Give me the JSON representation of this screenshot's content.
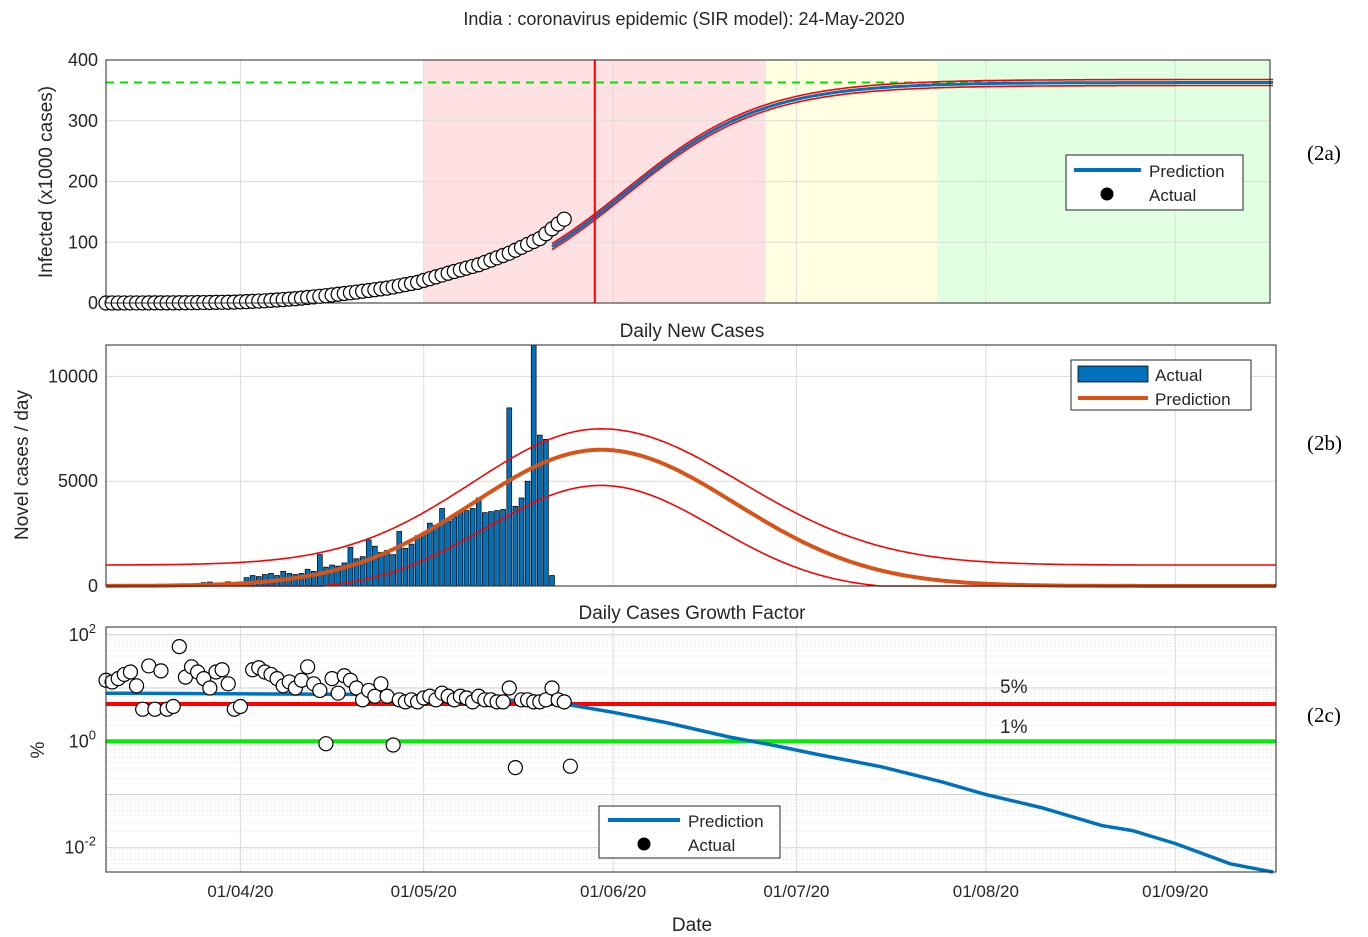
{
  "title": "India : coronavirus epidemic (SIR model): 24-May-2020",
  "xlabel": "Date",
  "date_ticks": [
    "01/04/20",
    "01/05/20",
    "01/06/20",
    "01/07/20",
    "01/08/20",
    "01/09/20"
  ],
  "colors": {
    "prediction": "#0072bd",
    "bounds": "#ff0000",
    "bar": "#0072bd",
    "orange": "#d95319",
    "zone_red": "#ffe1e3",
    "zone_yellow": "#ffffe1",
    "zone_green": "#e1ffe1",
    "asymptote": "#00e000",
    "line_5pct": "#ff0000",
    "line_1pct": "#00ee00"
  },
  "chart_data": [
    {
      "id": "2a",
      "type": "line",
      "panel_label": "(2a)",
      "title": "",
      "ylabel": "Infected (x1000 cases)",
      "xlim": [
        "2020-03-10",
        "2020-09-17"
      ],
      "ylim": [
        0,
        400
      ],
      "yticks": [
        "0",
        "100",
        "200",
        "300",
        "400"
      ],
      "grid": true,
      "legend_position": "right",
      "legend": {
        "prediction": "Prediction",
        "actual": "Actual"
      },
      "logistic": {
        "capacity": 363,
        "midpoint": "2020-06-03",
        "rate_per_day": 0.0889
      },
      "asymptote": 363,
      "current_date": "2020-05-29",
      "zones": [
        {
          "from": "2020-05-01",
          "to": "2020-06-26",
          "color": "red"
        },
        {
          "from": "2020-06-26",
          "to": "2020-07-24",
          "color": "yellow"
        },
        {
          "from": "2020-07-24",
          "to": "2020-09-17",
          "color": "green"
        }
      ],
      "actual": {
        "start": "2020-03-10",
        "end": "2020-05-24",
        "anchors": [
          [
            "2020-03-10",
            0.05
          ],
          [
            "2020-03-20",
            0.2
          ],
          [
            "2020-03-25",
            0.6
          ],
          [
            "2020-03-31",
            1.4
          ],
          [
            "2020-04-05",
            3.6
          ],
          [
            "2020-04-10",
            7.0
          ],
          [
            "2020-04-15",
            12.0
          ],
          [
            "2020-04-20",
            18.0
          ],
          [
            "2020-04-25",
            24.5
          ],
          [
            "2020-04-30",
            34.0
          ],
          [
            "2020-05-05",
            49.0
          ],
          [
            "2020-05-10",
            63.0
          ],
          [
            "2020-05-15",
            82.0
          ],
          [
            "2020-05-20",
            106.0
          ],
          [
            "2020-05-24",
            138.0
          ]
        ]
      }
    },
    {
      "id": "2b",
      "type": "bar",
      "panel_label": "(2b)",
      "title": "Daily New Cases",
      "ylabel": "Novel cases / day",
      "ylim": [
        0,
        11500
      ],
      "yticks": [
        "0",
        "5000",
        "10000"
      ],
      "grid": true,
      "legend_position": "top-right",
      "legend": {
        "actual": "Actual",
        "prediction": "Prediction"
      },
      "bars": {
        "start": "2020-03-23",
        "values": [
          50,
          50,
          100,
          160,
          190,
          60,
          110,
          200,
          170,
          120,
          400,
          500,
          450,
          550,
          600,
          500,
          700,
          600,
          550,
          600,
          800,
          700,
          1500,
          900,
          1000,
          950,
          1100,
          1850,
          1300,
          1400,
          2200,
          1900,
          1600,
          1700,
          1500,
          2600,
          1800,
          2000,
          2400,
          2500,
          3000,
          2900,
          3700,
          3100,
          3300,
          3500,
          3600,
          3700,
          4200,
          3500,
          3550,
          3600,
          3650,
          8500,
          3800,
          4200,
          5000,
          11500,
          7200,
          7000,
          500
        ]
      },
      "prediction_peak": 6500,
      "upper_peak": 7500,
      "lower_peak": 5400,
      "peak_date": "2020-05-30"
    },
    {
      "id": "2c",
      "type": "scatter",
      "panel_label": "(2c)",
      "title": "Daily Cases Growth Factor",
      "ylabel": "%",
      "yscale": "log",
      "ylim": [
        0.0035,
        140
      ],
      "yticks": [
        "10^-2",
        "10^0",
        "10^2"
      ],
      "grid": true,
      "legend_position": "bottom-center",
      "legend": {
        "prediction": "Prediction",
        "actual": "Actual"
      },
      "reference_lines": [
        {
          "label": "5%",
          "value": 5
        },
        {
          "label": "1%",
          "value": 1
        }
      ],
      "prediction": [
        [
          "2020-03-10",
          8.0
        ],
        [
          "2020-04-20",
          7.6
        ],
        [
          "2020-05-22",
          5.5
        ],
        [
          "2020-05-25",
          4.8
        ],
        [
          "2020-06-01",
          3.5
        ],
        [
          "2020-06-10",
          2.2
        ],
        [
          "2020-06-20",
          1.2
        ],
        [
          "2020-06-27",
          0.85
        ],
        [
          "2020-07-05",
          0.55
        ],
        [
          "2020-07-15",
          0.33
        ],
        [
          "2020-07-25",
          0.17
        ],
        [
          "2020-08-01",
          0.1
        ],
        [
          "2020-08-10",
          0.057
        ],
        [
          "2020-08-20",
          0.026
        ],
        [
          "2020-08-25",
          0.021
        ],
        [
          "2020-09-01",
          0.012
        ],
        [
          "2020-09-10",
          0.005
        ],
        [
          "2020-09-17",
          0.0035
        ]
      ],
      "actual": [
        [
          "2020-03-10",
          14
        ],
        [
          "2020-03-11",
          13
        ],
        [
          "2020-03-12",
          15
        ],
        [
          "2020-03-13",
          18
        ],
        [
          "2020-03-14",
          20
        ],
        [
          "2020-03-15",
          11
        ],
        [
          "2020-03-16",
          4
        ],
        [
          "2020-03-17",
          26
        ],
        [
          "2020-03-18",
          4
        ],
        [
          "2020-03-19",
          21
        ],
        [
          "2020-03-20",
          4
        ],
        [
          "2020-03-21",
          4.5
        ],
        [
          "2020-03-22",
          60
        ],
        [
          "2020-03-23",
          16
        ],
        [
          "2020-03-24",
          25
        ],
        [
          "2020-03-25",
          20
        ],
        [
          "2020-03-26",
          15
        ],
        [
          "2020-03-27",
          10
        ],
        [
          "2020-03-28",
          20
        ],
        [
          "2020-03-29",
          22
        ],
        [
          "2020-03-30",
          12
        ],
        [
          "2020-03-31",
          4
        ],
        [
          "2020-04-01",
          4.5
        ],
        [
          "2020-04-03",
          22
        ],
        [
          "2020-04-04",
          24
        ],
        [
          "2020-04-05",
          20
        ],
        [
          "2020-04-06",
          18
        ],
        [
          "2020-04-07",
          15
        ],
        [
          "2020-04-08",
          11
        ],
        [
          "2020-04-09",
          13
        ],
        [
          "2020-04-10",
          10
        ],
        [
          "2020-04-11",
          14
        ],
        [
          "2020-04-12",
          25
        ],
        [
          "2020-04-13",
          12
        ],
        [
          "2020-04-14",
          9
        ],
        [
          "2020-04-15",
          0.9
        ],
        [
          "2020-04-16",
          15
        ],
        [
          "2020-04-17",
          8
        ],
        [
          "2020-04-18",
          17
        ],
        [
          "2020-04-19",
          14
        ],
        [
          "2020-04-20",
          10
        ],
        [
          "2020-04-21",
          6
        ],
        [
          "2020-04-22",
          9
        ],
        [
          "2020-04-23",
          7
        ],
        [
          "2020-04-24",
          12
        ],
        [
          "2020-04-25",
          7
        ],
        [
          "2020-04-26",
          0.85
        ],
        [
          "2020-04-27",
          6
        ],
        [
          "2020-04-28",
          5.5
        ],
        [
          "2020-04-29",
          6
        ],
        [
          "2020-04-30",
          5.5
        ],
        [
          "2020-05-01",
          6.5
        ],
        [
          "2020-05-02",
          7
        ],
        [
          "2020-05-03",
          6
        ],
        [
          "2020-05-04",
          8
        ],
        [
          "2020-05-05",
          7
        ],
        [
          "2020-05-06",
          6
        ],
        [
          "2020-05-07",
          7
        ],
        [
          "2020-05-08",
          6.5
        ],
        [
          "2020-05-09",
          5.5
        ],
        [
          "2020-05-10",
          7
        ],
        [
          "2020-05-11",
          6
        ],
        [
          "2020-05-12",
          6
        ],
        [
          "2020-05-13",
          5.5
        ],
        [
          "2020-05-14",
          5.5
        ],
        [
          "2020-05-15",
          10
        ],
        [
          "2020-05-16",
          0.32
        ],
        [
          "2020-05-17",
          6
        ],
        [
          "2020-05-18",
          6
        ],
        [
          "2020-05-19",
          5.5
        ],
        [
          "2020-05-20",
          5.5
        ],
        [
          "2020-05-21",
          6
        ],
        [
          "2020-05-22",
          10
        ],
        [
          "2020-05-23",
          6
        ],
        [
          "2020-05-24",
          5.5
        ],
        [
          "2020-05-25",
          0.34
        ]
      ]
    }
  ]
}
